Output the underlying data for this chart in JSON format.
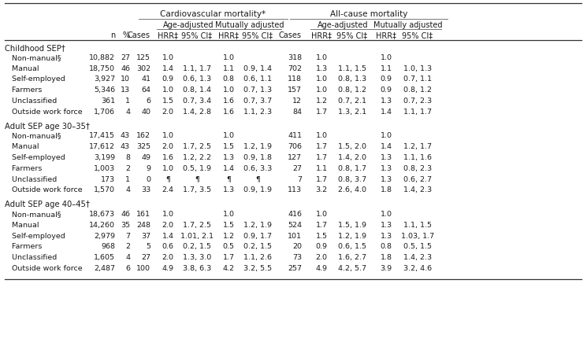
{
  "title_main": "Cardiovascular mortality*",
  "title_main2": "All-cause mortality",
  "subtitle_left": "Age-adjusted",
  "subtitle_right": "Mutually adjusted",
  "subtitle_left2": "Age-adjusted",
  "subtitle_right2": "Mutually adjusted",
  "col_headers": [
    "n",
    "%",
    "Cases",
    "HRR‡",
    "95% CI‡",
    "HRR‡",
    "95% CI‡",
    "Cases",
    "HRR‡",
    "95% CI‡",
    "HRR‡",
    "95% CI‡"
  ],
  "section_headers": [
    "Childhood SEP†",
    "Adult SEP age 30–35†",
    "Adult SEP age 40–45†"
  ],
  "row_labels": [
    [
      "Non-manual§",
      "Manual",
      "Self-employed",
      "Farmers",
      "Unclassified",
      "Outside work force"
    ],
    [
      "Non-manual§",
      "Manual",
      "Self-employed",
      "Farmers",
      "Unclassified",
      "Outside work force"
    ],
    [
      "Non-manual§",
      "Manual",
      "Self-employed",
      "Farmers",
      "Unclassified",
      "Outside work force"
    ]
  ],
  "data": [
    [
      [
        "10,882",
        "27",
        "125",
        "1.0",
        "",
        "1.0",
        "",
        "318",
        "1.0",
        "",
        "1.0",
        ""
      ],
      [
        "18,750",
        "46",
        "302",
        "1.4",
        "1.1, 1.7",
        "1.1",
        "0.9, 1.4",
        "702",
        "1.3",
        "1.1, 1.5",
        "1.1",
        "1.0, 1.3"
      ],
      [
        "3,927",
        "10",
        "41",
        "0.9",
        "0.6, 1.3",
        "0.8",
        "0.6, 1.1",
        "118",
        "1.0",
        "0.8, 1.3",
        "0.9",
        "0.7, 1.1"
      ],
      [
        "5,346",
        "13",
        "64",
        "1.0",
        "0.8, 1.4",
        "1.0",
        "0.7, 1.3",
        "157",
        "1.0",
        "0.8, 1.2",
        "0.9",
        "0.8, 1.2"
      ],
      [
        "361",
        "1",
        "6",
        "1.5",
        "0.7, 3.4",
        "1.6",
        "0.7, 3.7",
        "12",
        "1.2",
        "0.7, 2.1",
        "1.3",
        "0.7, 2.3"
      ],
      [
        "1,706",
        "4",
        "40",
        "2.0",
        "1.4, 2.8",
        "1.6",
        "1.1, 2.3",
        "84",
        "1.7",
        "1.3, 2.1",
        "1.4",
        "1.1, 1.7"
      ]
    ],
    [
      [
        "17,415",
        "43",
        "162",
        "1.0",
        "",
        "1.0",
        "",
        "411",
        "1.0",
        "",
        "1.0",
        ""
      ],
      [
        "17,612",
        "43",
        "325",
        "2.0",
        "1.7, 2.5",
        "1.5",
        "1.2, 1.9",
        "706",
        "1.7",
        "1.5, 2.0",
        "1.4",
        "1.2, 1.7"
      ],
      [
        "3,199",
        "8",
        "49",
        "1.6",
        "1.2, 2.2",
        "1.3",
        "0.9, 1.8",
        "127",
        "1.7",
        "1.4, 2.0",
        "1.3",
        "1.1, 1.6"
      ],
      [
        "1,003",
        "2",
        "9",
        "1.0",
        "0.5, 1.9",
        "1.4",
        "0.6, 3.3",
        "27",
        "1.1",
        "0.8, 1.7",
        "1.3",
        "0.8, 2.3"
      ],
      [
        "173",
        "1",
        "0",
        "¶",
        "¶",
        "¶",
        "¶",
        "7",
        "1.7",
        "0.8, 3.7",
        "1.3",
        "0.6, 2.7"
      ],
      [
        "1,570",
        "4",
        "33",
        "2.4",
        "1.7, 3.5",
        "1.3",
        "0.9, 1.9",
        "113",
        "3.2",
        "2.6, 4.0",
        "1.8",
        "1.4, 2.3"
      ]
    ],
    [
      [
        "18,673",
        "46",
        "161",
        "1.0",
        "",
        "1.0",
        "",
        "416",
        "1.0",
        "",
        "1.0",
        ""
      ],
      [
        "14,260",
        "35",
        "248",
        "2.0",
        "1.7, 2.5",
        "1.5",
        "1.2, 1.9",
        "524",
        "1.7",
        "1.5, 1.9",
        "1.3",
        "1.1, 1.5"
      ],
      [
        "2,979",
        "7",
        "37",
        "1.4",
        "1.01, 2.1",
        "1.2",
        "0.9, 1.7",
        "101",
        "1.5",
        "1.2, 1.9",
        "1.3",
        "1.03, 1.7"
      ],
      [
        "968",
        "2",
        "5",
        "0.6",
        "0.2, 1.5",
        "0.5",
        "0.2, 1.5",
        "20",
        "0.9",
        "0.6, 1.5",
        "0.8",
        "0.5, 1.5"
      ],
      [
        "1,605",
        "4",
        "27",
        "2.0",
        "1.3, 3.0",
        "1.7",
        "1.1, 2.6",
        "73",
        "2.0",
        "1.6, 2.7",
        "1.8",
        "1.4, 2.3"
      ],
      [
        "2,487",
        "6",
        "100",
        "4.9",
        "3.8, 6.3",
        "4.2",
        "3.2, 5.5",
        "257",
        "4.9",
        "4.2, 5.7",
        "3.9",
        "3.2, 4.6"
      ]
    ]
  ]
}
